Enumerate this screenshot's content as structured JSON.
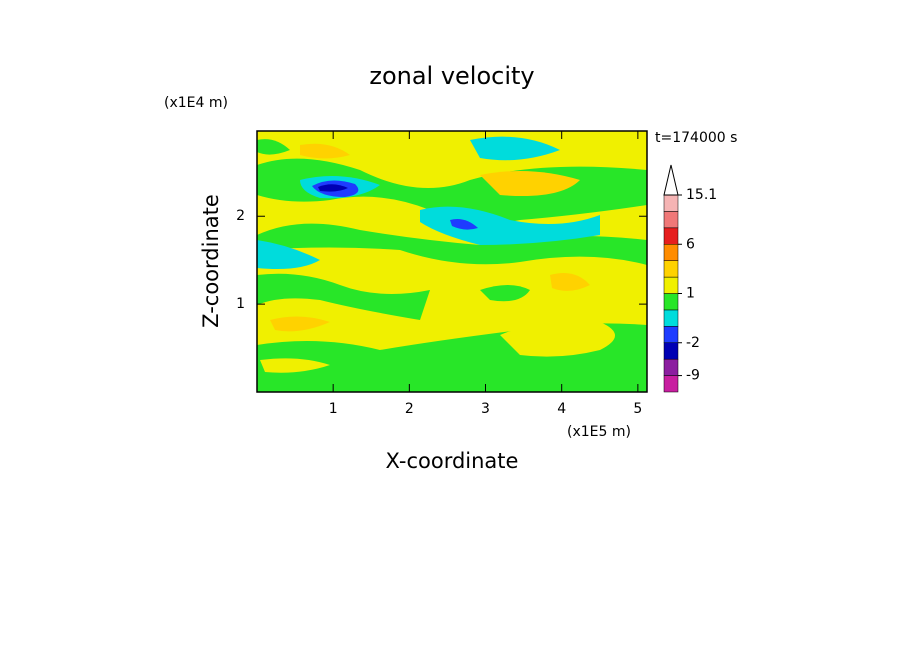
{
  "chart_data": {
    "type": "contour",
    "title": "zonal velocity",
    "x_label": "X-coordinate",
    "y_label": "Z-coordinate",
    "x_unit": "(x1E5 m)",
    "y_unit": "(x1E4 m)",
    "time_label": "t=174000 s",
    "xlim": [
      0,
      5.12
    ],
    "ylim": [
      0,
      2.97
    ],
    "xticks": [
      1,
      2,
      3,
      4,
      5
    ],
    "yticks": [
      1,
      2
    ],
    "colorbar": {
      "levels": [
        -12,
        -9,
        -6,
        -2,
        -1,
        0,
        1,
        2,
        4,
        6,
        9,
        12,
        15.1
      ],
      "colors": [
        "#ff1ec8",
        "#c81ea0",
        "#8c1ea0",
        "#0000b4",
        "#1e3cff",
        "#00dcdc",
        "#28e628",
        "#f0f000",
        "#ffd200",
        "#ff8c00",
        "#e61e1e",
        "#f07878",
        "#f5b4b4",
        "#ffffff"
      ],
      "ticks": [
        -9,
        -2,
        1,
        6,
        15.1
      ]
    }
  }
}
